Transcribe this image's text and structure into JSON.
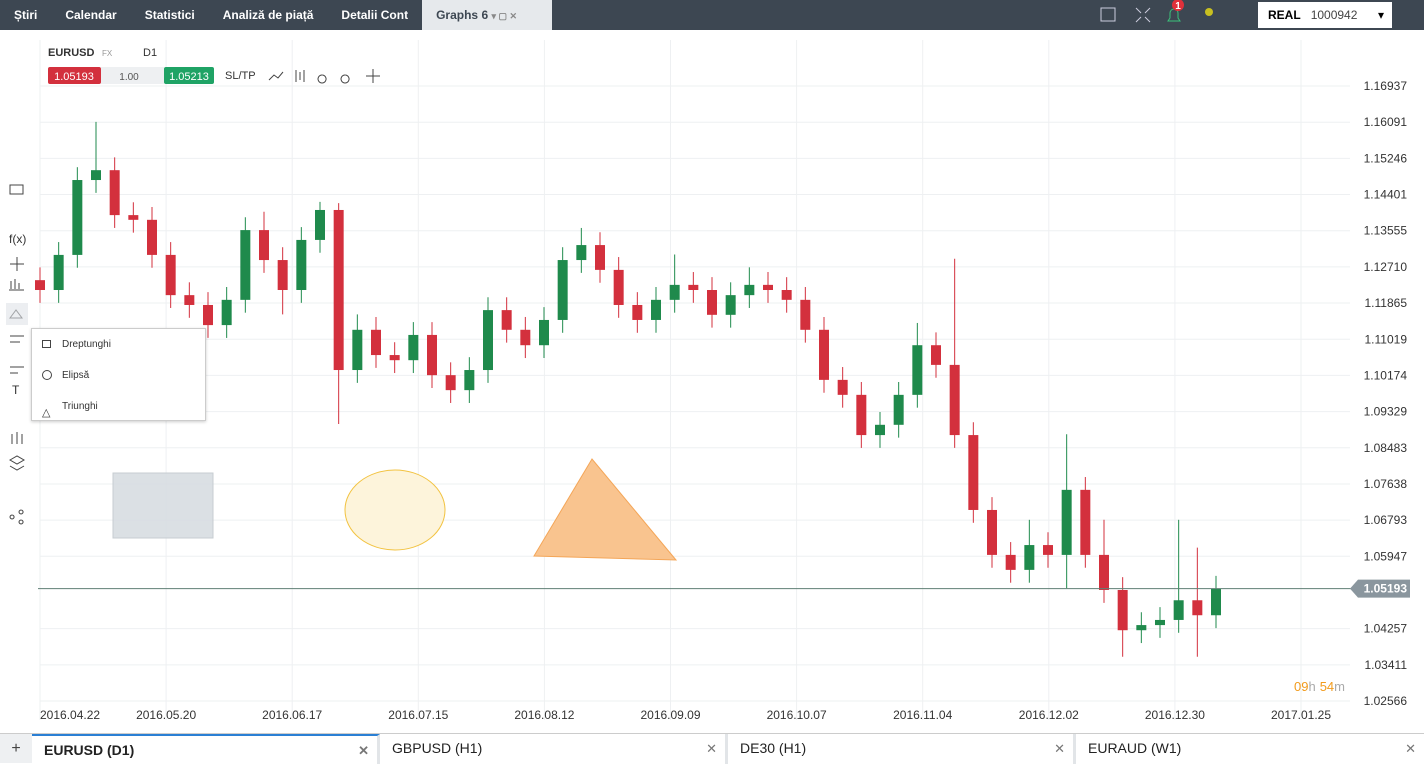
{
  "nav": [
    "Știri",
    "Calendar",
    "Statistici",
    "Analiză de piață",
    "Detalii Cont"
  ],
  "active_tab": "Graphs 6",
  "notifications": "1",
  "account": {
    "mode": "REAL",
    "id": "1000942"
  },
  "instrument": {
    "symbol": "EURUSD",
    "kind": "FX",
    "timeframe": "D1",
    "bid": "1.05193",
    "volume": "1.00",
    "ask": "1.05213",
    "sltp": "SL/TP"
  },
  "tools": {
    "fx": "f(x)",
    "text": "T"
  },
  "menu": [
    "Dreptunghi",
    "Elipsă",
    "Triunghi"
  ],
  "chart": {
    "type": "candlestick",
    "ylim": [
      1.02122,
      1.18012
    ],
    "yticks": [
      1.16937,
      1.16091,
      1.15246,
      1.14401,
      1.13555,
      {
        "value": 1.1271,
        "label": "1.12710"
      },
      1.11865,
      1.11019,
      1.10174,
      1.09329,
      1.08483,
      1.07638,
      1.06793,
      1.05947,
      1.04257,
      1.03411,
      1.02566
    ],
    "x_labels": [
      "2016.04.22",
      "2016.05.20",
      "2016.06.17",
      "2016.07.15",
      "2016.08.12",
      "2016.09.09",
      "2016.10.07",
      "2016.11.04",
      "2016.12.02",
      "2016.12.30",
      "2017.01.25"
    ],
    "up_color": "#1f8a4c",
    "down_color": "#d3303d",
    "current_price": 1.05193,
    "candles": [
      [
        1.124,
        1.127,
        1.1187,
        1.1217
      ],
      [
        1.1217,
        1.1329,
        1.1187,
        1.1299
      ],
      [
        1.1299,
        1.1504,
        1.1269,
        1.1474
      ],
      [
        1.1474,
        1.161,
        1.1444,
        1.1497
      ],
      [
        1.1497,
        1.1527,
        1.1362,
        1.1392
      ],
      [
        1.1392,
        1.1422,
        1.1351,
        1.1381
      ],
      [
        1.1381,
        1.1411,
        1.1269,
        1.1299
      ],
      [
        1.1299,
        1.1329,
        1.1175,
        1.1205
      ],
      [
        1.1205,
        1.1235,
        1.1152,
        1.1182
      ],
      [
        1.1182,
        1.1212,
        1.1105,
        1.1135
      ],
      [
        1.1135,
        1.1224,
        1.1105,
        1.1194
      ],
      [
        1.1194,
        1.1387,
        1.1164,
        1.1357
      ],
      [
        1.1357,
        1.14,
        1.1257,
        1.1287
      ],
      [
        1.1287,
        1.1317,
        1.116,
        1.1217
      ],
      [
        1.1217,
        1.1364,
        1.1187,
        1.1334
      ],
      [
        1.1334,
        1.1423,
        1.1304,
        1.1404
      ],
      [
        1.1404,
        1.142,
        1.0904,
        1.103
      ],
      [
        1.103,
        1.116,
        1.1,
        1.1124
      ],
      [
        1.1124,
        1.1154,
        1.1035,
        1.1065
      ],
      [
        1.1065,
        1.1095,
        1.1023,
        1.1053
      ],
      [
        1.1053,
        1.1142,
        1.1023,
        1.1112
      ],
      [
        1.1112,
        1.1142,
        1.0988,
        1.1018
      ],
      [
        1.1018,
        1.1048,
        1.0953,
        1.0983
      ],
      [
        1.0983,
        1.106,
        1.0953,
        1.103
      ],
      [
        1.103,
        1.12,
        1.1,
        1.117
      ],
      [
        1.117,
        1.12,
        1.1094,
        1.1124
      ],
      [
        1.1124,
        1.1154,
        1.1058,
        1.1088
      ],
      [
        1.1088,
        1.1177,
        1.1058,
        1.1147
      ],
      [
        1.1147,
        1.1317,
        1.1117,
        1.1287
      ],
      [
        1.1287,
        1.1362,
        1.1257,
        1.1322
      ],
      [
        1.1322,
        1.1352,
        1.1234,
        1.1264
      ],
      [
        1.1264,
        1.1294,
        1.1152,
        1.1182
      ],
      [
        1.1182,
        1.1212,
        1.1117,
        1.1147
      ],
      [
        1.1147,
        1.1224,
        1.1117,
        1.1194
      ],
      [
        1.1194,
        1.13,
        1.1164,
        1.1229
      ],
      [
        1.1229,
        1.1259,
        1.1187,
        1.1217
      ],
      [
        1.1217,
        1.1247,
        1.1129,
        1.1159
      ],
      [
        1.1159,
        1.1235,
        1.1129,
        1.1205
      ],
      [
        1.1205,
        1.127,
        1.1175,
        1.1229
      ],
      [
        1.1229,
        1.1259,
        1.1187,
        1.1217
      ],
      [
        1.1217,
        1.1247,
        1.1164,
        1.1194
      ],
      [
        1.1194,
        1.1224,
        1.1094,
        1.1124
      ],
      [
        1.1124,
        1.1154,
        1.0977,
        1.1007
      ],
      [
        1.1007,
        1.1037,
        1.0942,
        1.0972
      ],
      [
        1.0972,
        1.1002,
        1.0848,
        1.0878
      ],
      [
        1.0878,
        1.0932,
        1.0848,
        1.0902
      ],
      [
        1.0902,
        1.1002,
        1.0872,
        1.0972
      ],
      [
        1.0972,
        1.114,
        1.0942,
        1.1088
      ],
      [
        1.1088,
        1.1118,
        1.1012,
        1.1042
      ],
      [
        1.1042,
        1.129,
        1.0848,
        1.0878
      ],
      [
        1.0878,
        1.0908,
        1.0673,
        1.0703
      ],
      [
        1.0703,
        1.0733,
        1.0568,
        1.0598
      ],
      [
        1.0598,
        1.0628,
        1.0533,
        1.0563
      ],
      [
        1.0563,
        1.068,
        1.0533,
        1.0621
      ],
      [
        1.0621,
        1.0651,
        1.0568,
        1.0598
      ],
      [
        1.0598,
        1.088,
        1.052,
        1.075
      ],
      [
        1.075,
        1.078,
        1.0568,
        1.0598
      ],
      [
        1.0598,
        1.068,
        1.0486,
        1.0516
      ],
      [
        1.0516,
        1.0546,
        1.036,
        1.0422
      ],
      [
        1.0422,
        1.0464,
        1.0392,
        1.0434
      ],
      [
        1.0434,
        1.0476,
        1.0404,
        1.0446
      ],
      [
        1.0446,
        1.068,
        1.0416,
        1.0492
      ],
      [
        1.0492,
        1.0615,
        1.036,
        1.0457
      ],
      [
        1.0457,
        1.0549,
        1.0427,
        1.0519
      ]
    ],
    "countdown": {
      "hours": "09",
      "h": "h",
      "minutes": "54",
      "m": "m"
    }
  },
  "bottom_tabs": [
    "EURUSD (D1)",
    "GBPUSD (H1)",
    "DE30 (H1)",
    "EURAUD (W1)"
  ]
}
